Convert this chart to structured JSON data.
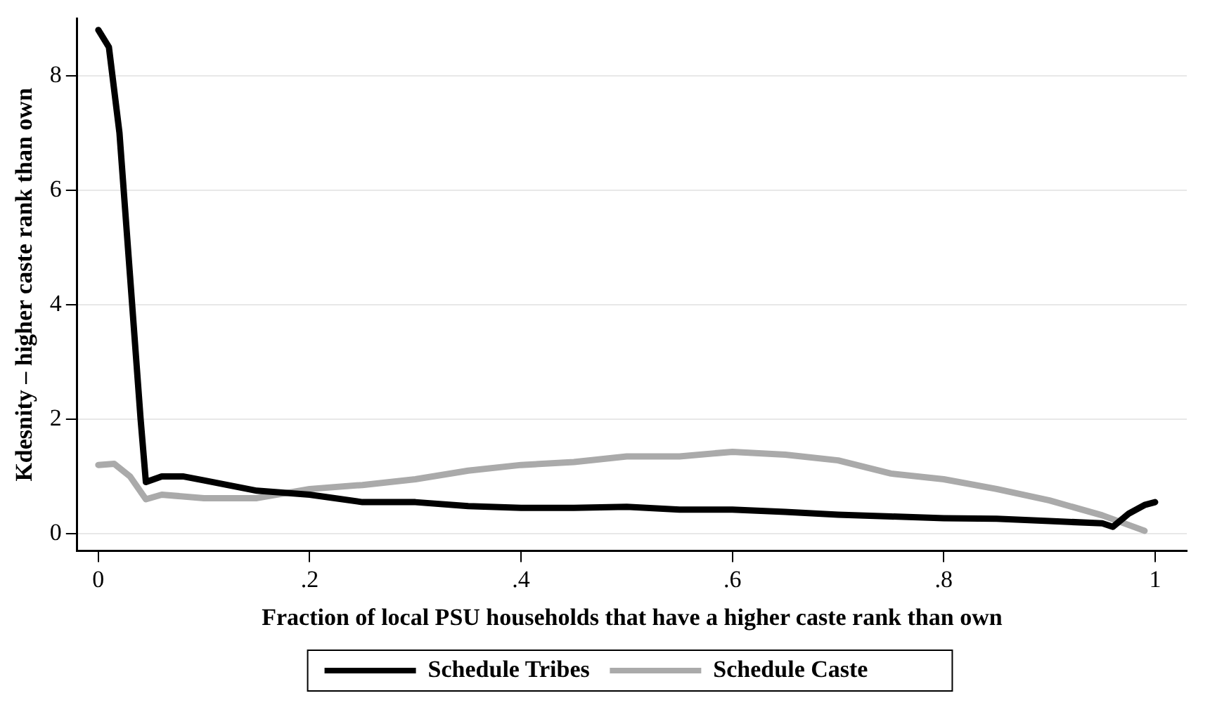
{
  "chart_data": {
    "type": "line",
    "xlabel": "Fraction of local PSU households that have a higher caste rank than own",
    "ylabel": "Kdesnity – higher caste rank than own",
    "xlim": [
      -0.02,
      1.03
    ],
    "xticks": [
      {
        "value": 0,
        "label": "0"
      },
      {
        "value": 0.2,
        "label": ".2"
      },
      {
        "value": 0.4,
        "label": ".4"
      },
      {
        "value": 0.6,
        "label": ".6"
      },
      {
        "value": 0.8,
        "label": ".8"
      },
      {
        "value": 1,
        "label": "1"
      }
    ],
    "ylim": [
      -0.3,
      9
    ],
    "yticks": [
      0,
      2,
      4,
      6,
      8
    ],
    "grid": "y",
    "legend": "bottom",
    "marker": "none",
    "line_style": "solid",
    "series": [
      {
        "name": "Schedule Tribes",
        "color": "#000000",
        "x": [
          0,
          0.01,
          0.02,
          0.03,
          0.04,
          0.045,
          0.06,
          0.08,
          0.1,
          0.15,
          0.2,
          0.25,
          0.3,
          0.35,
          0.4,
          0.45,
          0.5,
          0.55,
          0.6,
          0.65,
          0.7,
          0.75,
          0.8,
          0.85,
          0.9,
          0.95,
          0.96,
          0.975,
          0.99,
          1.0
        ],
        "values": [
          8.8,
          8.5,
          7,
          4.5,
          2,
          0.9,
          1.0,
          1.0,
          0.93,
          0.75,
          0.68,
          0.55,
          0.55,
          0.48,
          0.45,
          0.45,
          0.47,
          0.42,
          0.42,
          0.38,
          0.33,
          0.3,
          0.27,
          0.26,
          0.22,
          0.18,
          0.12,
          0.35,
          0.5,
          0.55
        ]
      },
      {
        "name": "Schedule Caste",
        "color": "#aaaaaa",
        "x": [
          0,
          0.015,
          0.03,
          0.045,
          0.06,
          0.1,
          0.15,
          0.2,
          0.25,
          0.3,
          0.35,
          0.4,
          0.45,
          0.5,
          0.55,
          0.6,
          0.65,
          0.7,
          0.75,
          0.8,
          0.85,
          0.9,
          0.95,
          0.99
        ],
        "values": [
          1.2,
          1.22,
          1.0,
          0.6,
          0.68,
          0.62,
          0.62,
          0.78,
          0.85,
          0.95,
          1.1,
          1.2,
          1.25,
          1.35,
          1.35,
          1.43,
          1.38,
          1.28,
          1.05,
          0.95,
          0.78,
          0.58,
          0.32,
          0.05
        ]
      }
    ]
  }
}
